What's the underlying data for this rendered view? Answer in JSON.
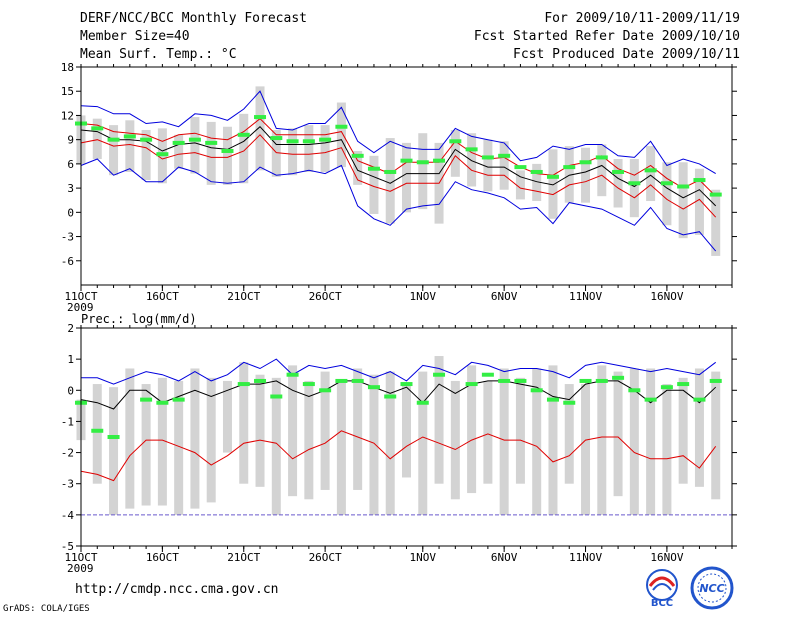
{
  "header": {
    "title": "DERF/NCC/BCC Monthly Forecast",
    "member_size": "Member Size=40",
    "variable": "Mean Surf. Temp.: °C",
    "period": "For 2009/10/11-2009/11/19",
    "started": "Fcst Started Refer Date 2009/10/10",
    "produced": "Fcst Produced Date 2009/10/11"
  },
  "footer": {
    "url": "http://cmdp.ncc.cma.gov.cn",
    "grads": "GrADS: COLA/IGES",
    "logo_bcc": "BCC",
    "logo_ncc": "NCC"
  },
  "colors": {
    "bar": "#d3d3d3",
    "mean": "#000000",
    "spread": "#e00000",
    "extreme": "#0000dd",
    "obs": "#33ee44",
    "baseline": "#6a5acd"
  },
  "chart_data": [
    {
      "type": "line",
      "title": "Mean Surf. Temp.: °C",
      "ylabel": "°C",
      "ylim": [
        -9,
        18
      ],
      "yticks": [
        -6,
        -3,
        0,
        3,
        6,
        9,
        12,
        15,
        18
      ],
      "xlim": [
        11,
        51
      ],
      "xtick_positions": [
        11,
        16,
        21,
        26,
        32,
        37,
        42,
        47
      ],
      "xtick_labels": [
        "11OCT",
        "16OCT",
        "21OCT",
        "26OCT",
        "1NOV",
        "6NOV",
        "11NOV",
        "16NOV"
      ],
      "year_label": "2009",
      "x": [
        11,
        12,
        13,
        14,
        15,
        16,
        17,
        18,
        19,
        20,
        21,
        22,
        23,
        24,
        25,
        26,
        27,
        28,
        29,
        30,
        31,
        32,
        33,
        34,
        35,
        36,
        37,
        38,
        39,
        40,
        41,
        42,
        43,
        44,
        45,
        46,
        47,
        48,
        49,
        50
      ],
      "series": [
        {
          "name": "mean",
          "values": [
            10.2,
            10.0,
            9.0,
            9.0,
            8.8,
            7.6,
            8.4,
            8.6,
            8.0,
            7.8,
            8.8,
            10.6,
            8.4,
            8.4,
            8.4,
            8.6,
            9.0,
            5.2,
            4.4,
            3.6,
            4.8,
            4.8,
            4.8,
            7.8,
            6.4,
            5.6,
            5.6,
            4.4,
            3.8,
            3.4,
            4.6,
            5.0,
            5.8,
            4.2,
            3.2,
            4.6,
            3.0,
            1.8,
            2.8,
            0.8
          ]
        },
        {
          "name": "upper",
          "values": [
            11.0,
            10.8,
            10.0,
            9.8,
            9.6,
            8.8,
            9.6,
            9.8,
            9.2,
            9.0,
            10.0,
            11.6,
            9.6,
            9.6,
            9.6,
            9.6,
            10.0,
            6.4,
            5.6,
            4.8,
            6.2,
            6.2,
            6.2,
            8.8,
            7.4,
            6.6,
            6.8,
            5.6,
            4.8,
            4.6,
            5.8,
            6.2,
            7.0,
            5.4,
            4.6,
            5.8,
            4.2,
            3.0,
            4.0,
            2.0
          ]
        },
        {
          "name": "lower",
          "values": [
            8.6,
            9.0,
            8.2,
            8.4,
            8.0,
            6.6,
            7.2,
            7.4,
            6.8,
            6.8,
            7.6,
            9.6,
            7.4,
            7.2,
            7.2,
            7.4,
            8.0,
            4.0,
            3.2,
            2.6,
            3.6,
            3.6,
            3.6,
            7.0,
            5.2,
            4.6,
            4.6,
            3.0,
            2.6,
            2.2,
            3.4,
            3.8,
            4.6,
            3.0,
            1.8,
            3.4,
            1.6,
            0.4,
            1.6,
            -0.6
          ]
        },
        {
          "name": "max",
          "values": [
            13.2,
            13.1,
            12.2,
            12.2,
            11.0,
            11.2,
            10.6,
            12.2,
            12.0,
            11.4,
            12.8,
            15.0,
            10.4,
            10.2,
            11.0,
            11.0,
            13.0,
            8.8,
            7.4,
            8.8,
            8.0,
            7.8,
            7.8,
            10.4,
            9.4,
            9.0,
            8.6,
            6.4,
            6.8,
            8.2,
            7.8,
            8.4,
            8.4,
            7.0,
            6.8,
            8.8,
            5.8,
            6.6,
            6.0,
            4.8
          ]
        },
        {
          "name": "min",
          "values": [
            5.8,
            6.6,
            4.6,
            5.4,
            3.8,
            3.8,
            5.6,
            5.0,
            3.8,
            3.6,
            3.8,
            5.6,
            4.6,
            4.8,
            5.2,
            4.8,
            5.8,
            0.8,
            -0.8,
            -1.6,
            0.4,
            0.8,
            1.0,
            3.8,
            2.8,
            2.4,
            1.8,
            0.4,
            0.6,
            -1.4,
            1.2,
            0.8,
            0.4,
            -0.6,
            -1.6,
            0.6,
            -2.0,
            -2.8,
            -2.4,
            -4.8
          ]
        },
        {
          "name": "obs",
          "values": [
            11.0,
            10.4,
            9.0,
            9.4,
            9.0,
            7.2,
            8.6,
            9.0,
            8.6,
            7.6,
            9.6,
            11.8,
            9.2,
            8.8,
            8.8,
            9.0,
            10.6,
            7.0,
            5.4,
            5.0,
            6.4,
            6.2,
            6.4,
            8.8,
            7.8,
            6.8,
            7.0,
            5.6,
            5.0,
            4.4,
            5.6,
            6.2,
            6.8,
            5.0,
            3.6,
            5.2,
            3.6,
            3.2,
            4.0,
            2.2
          ]
        },
        {
          "name": "bar_top",
          "values": [
            12.0,
            11.6,
            10.8,
            11.4,
            10.2,
            10.4,
            9.6,
            11.8,
            11.2,
            10.6,
            12.2,
            15.6,
            10.2,
            10.4,
            10.8,
            10.8,
            13.6,
            7.6,
            7.0,
            9.2,
            8.6,
            9.8,
            8.6,
            10.2,
            9.8,
            9.0,
            8.8,
            5.2,
            6.0,
            7.8,
            8.2,
            8.0,
            8.4,
            6.6,
            6.6,
            8.2,
            6.2,
            6.2,
            5.4,
            2.8
          ]
        },
        {
          "name": "bar_bottom",
          "values": [
            6.0,
            6.6,
            4.6,
            5.0,
            4.0,
            3.6,
            5.4,
            4.8,
            3.4,
            3.4,
            3.6,
            5.2,
            4.4,
            4.6,
            5.0,
            5.0,
            5.6,
            3.4,
            -0.2,
            -1.4,
            0.0,
            0.4,
            -1.4,
            4.4,
            3.2,
            2.6,
            2.8,
            1.6,
            1.4,
            -0.8,
            1.2,
            1.2,
            2.0,
            0.6,
            -0.6,
            1.4,
            -1.6,
            -3.2,
            -2.8,
            -5.4
          ]
        }
      ]
    },
    {
      "type": "line",
      "title": "Prec.: log(mm/d)",
      "ylabel": "log(mm/d)",
      "ylim": [
        -5,
        2
      ],
      "yticks": [
        -5,
        -4,
        -3,
        -2,
        -1,
        0,
        1,
        2
      ],
      "xlim": [
        11,
        51
      ],
      "xtick_positions": [
        11,
        16,
        21,
        26,
        32,
        37,
        42,
        47
      ],
      "xtick_labels": [
        "11OCT",
        "16OCT",
        "21OCT",
        "26OCT",
        "1NOV",
        "6NOV",
        "11NOV",
        "16NOV"
      ],
      "year_label": "2009",
      "baseline": -4,
      "x": [
        11,
        12,
        13,
        14,
        15,
        16,
        17,
        18,
        19,
        20,
        21,
        22,
        23,
        24,
        25,
        26,
        27,
        28,
        29,
        30,
        31,
        32,
        33,
        34,
        35,
        36,
        37,
        38,
        39,
        40,
        41,
        42,
        43,
        44,
        45,
        46,
        47,
        48,
        49,
        50
      ],
      "series": [
        {
          "name": "mean",
          "values": [
            -0.3,
            -0.4,
            -0.6,
            0.0,
            0.0,
            -0.4,
            -0.2,
            0.0,
            -0.2,
            0.0,
            0.2,
            0.2,
            0.3,
            0.0,
            -0.2,
            0.0,
            0.3,
            0.3,
            0.1,
            -0.1,
            0.1,
            -0.4,
            0.2,
            -0.1,
            0.2,
            0.3,
            0.3,
            0.2,
            0.1,
            -0.2,
            -0.3,
            0.2,
            0.3,
            0.3,
            0.0,
            -0.4,
            0.0,
            0.0,
            -0.4,
            0.1
          ]
        },
        {
          "name": "upper",
          "values": [
            -0.2,
            -0.2,
            -0.4,
            0.1,
            0.1,
            -0.3,
            -0.1,
            0.1,
            -0.1,
            0.1,
            0.3,
            0.3,
            0.4,
            0.1,
            -0.1,
            0.1,
            0.4,
            0.4,
            0.2,
            0.0,
            0.2,
            -0.3,
            0.3,
            0.0,
            0.3,
            0.4,
            0.4,
            0.3,
            0.2,
            -0.1,
            -0.2,
            0.3,
            0.4,
            0.4,
            0.1,
            -0.3,
            0.1,
            0.1,
            -0.3,
            0.2
          ]
        },
        {
          "name": "lower",
          "values": [
            -0.6,
            -0.7,
            -0.9,
            -0.3,
            -0.3,
            -0.7,
            -0.5,
            -0.3,
            -0.5,
            -0.3,
            -0.1,
            -0.1,
            0.0,
            -0.3,
            -0.5,
            -0.3,
            0.0,
            0.0,
            -0.2,
            -0.4,
            -0.2,
            -0.6,
            -0.1,
            -0.3,
            0.0,
            0.1,
            0.1,
            0.0,
            -0.1,
            -0.4,
            -0.5,
            0.0,
            0.1,
            0.1,
            -0.2,
            -0.6,
            -0.2,
            -0.2,
            -0.6,
            -0.1
          ]
        },
        {
          "name": "max",
          "values": [
            0.4,
            0.4,
            0.2,
            0.4,
            0.6,
            0.5,
            0.3,
            0.6,
            0.3,
            0.5,
            0.9,
            0.7,
            1.0,
            0.5,
            0.8,
            0.7,
            0.8,
            0.6,
            0.4,
            0.6,
            0.3,
            0.8,
            0.7,
            0.5,
            0.9,
            0.8,
            0.6,
            0.7,
            0.7,
            0.6,
            0.4,
            0.8,
            0.9,
            0.8,
            0.7,
            0.6,
            0.7,
            0.6,
            0.5,
            0.9
          ]
        },
        {
          "name": "min",
          "values": [
            -2.6,
            -2.7,
            -2.9,
            -2.1,
            -1.6,
            -1.6,
            -1.8,
            -2.0,
            -2.4,
            -2.1,
            -1.7,
            -1.6,
            -1.7,
            -2.2,
            -1.9,
            -1.7,
            -1.3,
            -1.5,
            -1.7,
            -2.2,
            -1.8,
            -1.5,
            -1.7,
            -1.9,
            -1.6,
            -1.4,
            -1.6,
            -1.6,
            -1.8,
            -2.3,
            -2.1,
            -1.6,
            -1.5,
            -1.5,
            -2.0,
            -2.2,
            -2.2,
            -2.1,
            -2.5,
            -1.8
          ]
        },
        {
          "name": "obs",
          "values": [
            -0.4,
            -1.3,
            -1.5,
            null,
            -0.3,
            -0.4,
            -0.3,
            null,
            null,
            null,
            0.2,
            0.3,
            -0.2,
            0.5,
            0.2,
            0.0,
            0.3,
            0.3,
            0.1,
            -0.2,
            0.2,
            -0.4,
            0.5,
            null,
            0.2,
            0.5,
            0.3,
            0.3,
            0.0,
            -0.3,
            -0.4,
            0.3,
            0.3,
            0.4,
            0.0,
            -0.3,
            0.1,
            0.2,
            -0.3,
            0.3
          ]
        },
        {
          "name": "bar_top",
          "values": [
            -0.3,
            0.2,
            0.1,
            0.7,
            0.2,
            0.4,
            0.3,
            0.7,
            0.4,
            0.3,
            0.9,
            0.5,
            0.4,
            0.8,
            0.3,
            0.6,
            0.3,
            0.7,
            0.5,
            0.6,
            0.2,
            0.6,
            1.1,
            0.3,
            0.8,
            0.3,
            0.7,
            0.4,
            0.7,
            0.8,
            0.2,
            0.2,
            0.8,
            0.6,
            0.7,
            0.7,
            0.2,
            0.4,
            0.7,
            0.6
          ]
        },
        {
          "name": "bar_bottom",
          "values": [
            -1.6,
            -3.0,
            -4.0,
            -3.8,
            -3.7,
            -3.7,
            -4.0,
            -3.8,
            -3.6,
            -2.0,
            -3.0,
            -3.1,
            -4.0,
            -3.4,
            -3.5,
            -3.2,
            -4.0,
            -3.2,
            -4.0,
            -4.0,
            -2.8,
            -4.0,
            -3.0,
            -3.5,
            -3.3,
            -3.0,
            -4.0,
            -3.0,
            -4.0,
            -4.0,
            -3.0,
            -4.0,
            -4.0,
            -3.4,
            -4.0,
            -4.0,
            -4.0,
            -3.0,
            -3.1,
            -3.5
          ]
        }
      ]
    }
  ]
}
